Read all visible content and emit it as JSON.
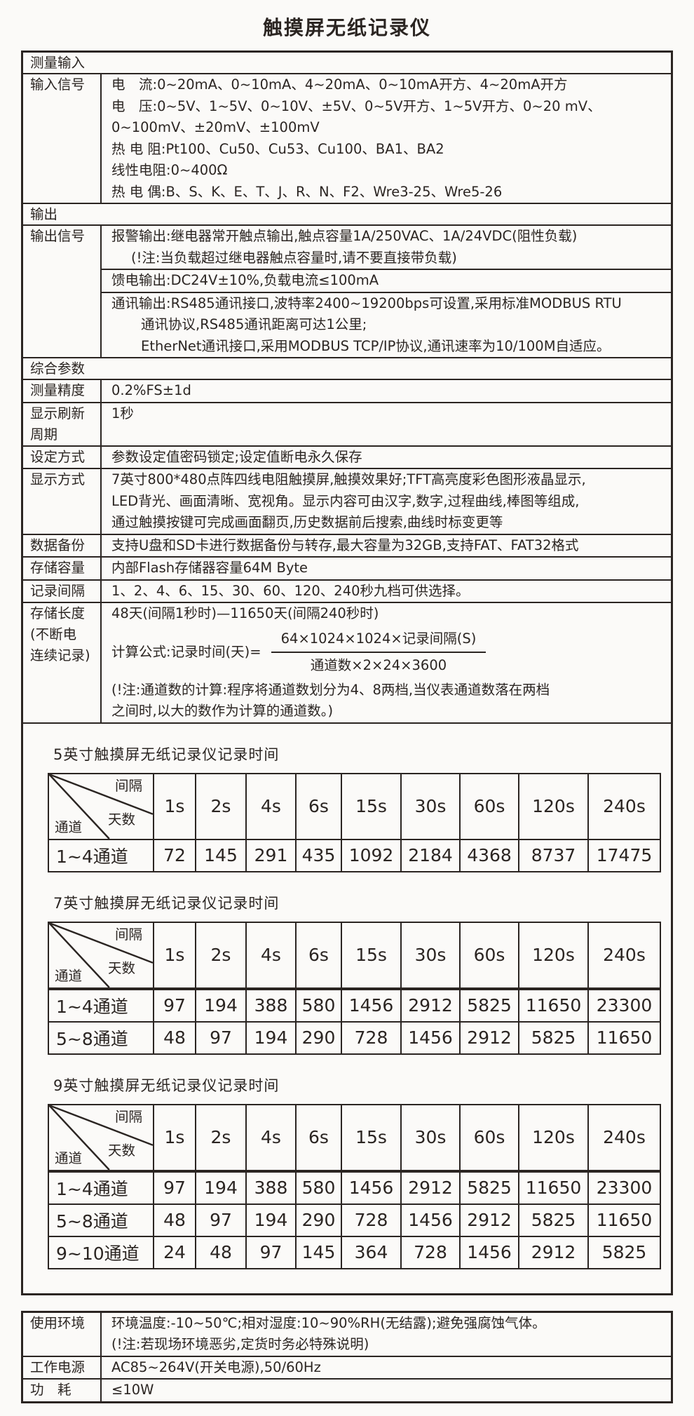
{
  "title": "触摸屏无纸记录仪",
  "colors": {
    "ink": "#2b2522",
    "background": "#fbfaf8"
  },
  "spec_rows": [
    {
      "kind": "section",
      "label": "测量输入"
    },
    {
      "kind": "item",
      "label_lines": [
        "输入信号"
      ],
      "sub": [
        {
          "lines": [
            {
              "t": "电　流:0~20mA、0~10mA、4~20mA、0~10mA开方、4~20mA开方"
            },
            {
              "t": "电　压:0~5V、1~5V、0~10V、±5V、0~5V开方、1~5V开方、0~20 mV、"
            },
            {
              "t": "0~100mV、±20mV、±100mV"
            },
            {
              "t": "热 电 阻:Pt100、Cu50、Cu53、Cu100、BA1、BA2"
            },
            {
              "t": "线性电阻:0~400Ω"
            },
            {
              "t": "热 电 偶:B、S、K、E、T、J、R、N、F2、Wre3-25、Wre5-26"
            }
          ]
        }
      ]
    },
    {
      "kind": "section",
      "label": "输出"
    },
    {
      "kind": "item",
      "label_lines": [
        "输出信号"
      ],
      "sub": [
        {
          "lines": [
            {
              "t": "报警输出:继电器常开触点输出,触点容量1A/250VAC、1A/24VDC(阻性负载)"
            },
            {
              "t": "(!注:当负载超过继电器触点容量时,请不要直接带负载)",
              "ind": 1
            }
          ]
        },
        {
          "lines": [
            {
              "t": "馈电输出:DC24V±10%,负载电流≤100mA"
            }
          ]
        },
        {
          "lines": [
            {
              "t": "通讯输出:RS485通讯接口,波特率2400~19200bps可设置,采用标准MODBUS RTU"
            },
            {
              "t": "通讯协议,RS485通讯距离可达1公里;",
              "ind": 2
            },
            {
              "t": "EtherNet通讯接口,采用MODBUS TCP/IP协议,通讯速率为10/100M自适应。",
              "ind": 2
            }
          ]
        }
      ]
    },
    {
      "kind": "section",
      "label": "综合参数"
    },
    {
      "kind": "item",
      "label_lines": [
        "测量精度"
      ],
      "sub": [
        {
          "lines": [
            {
              "t": "0.2%FS±1d"
            }
          ]
        }
      ]
    },
    {
      "kind": "item",
      "label_lines": [
        "显示刷新",
        "周期"
      ],
      "sub": [
        {
          "lines": [
            {
              "t": "1秒"
            }
          ]
        }
      ]
    },
    {
      "kind": "item",
      "label_lines": [
        "设定方式"
      ],
      "sub": [
        {
          "lines": [
            {
              "t": "参数设定值密码锁定;设定值断电永久保存"
            }
          ]
        }
      ]
    },
    {
      "kind": "item",
      "label_lines": [
        "显示方式"
      ],
      "sub": [
        {
          "lines": [
            {
              "t": "7英寸800*480点阵四线电阻触摸屏,触摸效果好;TFT高亮度彩色图形液晶显示,"
            },
            {
              "t": "LED背光、画面清晰、宽视角。显示内容可由汉字,数字,过程曲线,棒图等组成,"
            },
            {
              "t": "通过触摸按键可完成画面翻页,历史数据前后搜索,曲线时标变更等"
            }
          ]
        }
      ]
    },
    {
      "kind": "item",
      "label_lines": [
        "数据备份"
      ],
      "sub": [
        {
          "lines": [
            {
              "t": "支持U盘和SD卡进行数据备份与转存,最大容量为32GB,支持FAT、FAT32格式"
            }
          ]
        }
      ]
    },
    {
      "kind": "item",
      "label_lines": [
        "存储容量"
      ],
      "sub": [
        {
          "lines": [
            {
              "t": "内部Flash存储器容量64M Byte"
            }
          ]
        }
      ]
    },
    {
      "kind": "item",
      "label_lines": [
        "记录间隔"
      ],
      "sub": [
        {
          "lines": [
            {
              "t": "1、2、4、6、15、30、60、120、240秒九档可供选择。"
            }
          ]
        }
      ]
    },
    {
      "kind": "item",
      "label_lines": [
        "存储长度",
        "(不断电",
        "连续记录)"
      ],
      "sub": [
        {
          "lines": [
            {
              "t": "48天(间隔1秒时)—11650天(间隔240秒时)"
            }
          ],
          "formula": {
            "prefix": "计算公式:记录时间(天)=",
            "num": "64×1024×1024×记录间隔(S)",
            "den": "通道数×2×24×3600"
          },
          "lines2": [
            {
              "t": "(!注:通道数的计算:程序将通道数划分为4、8两档,当仪表通道数落在两档"
            },
            {
              "t": "之间时,以大的数作为计算的通道数。)"
            }
          ]
        }
      ]
    }
  ],
  "record_tables": [
    {
      "title": "5英寸触摸屏无纸记录仪记录时间",
      "corner": {
        "interval": "间隔",
        "days": "天数",
        "channel": "通道"
      },
      "intervals": [
        "1s",
        "2s",
        "4s",
        "6s",
        "15s",
        "30s",
        "60s",
        "120s",
        "240s"
      ],
      "rows": [
        {
          "label": "1~4通道",
          "values": [
            72,
            145,
            291,
            435,
            1092,
            2184,
            4368,
            8737,
            17475
          ]
        }
      ]
    },
    {
      "title": "7英寸触摸屏无纸记录仪记录时间",
      "corner": {
        "interval": "间隔",
        "days": "天数",
        "channel": "通道"
      },
      "intervals": [
        "1s",
        "2s",
        "4s",
        "6s",
        "15s",
        "30s",
        "60s",
        "120s",
        "240s"
      ],
      "rows": [
        {
          "label": "1~4通道",
          "values": [
            97,
            194,
            388,
            580,
            1456,
            2912,
            5825,
            11650,
            23300
          ]
        },
        {
          "label": "5~8通道",
          "values": [
            48,
            97,
            194,
            290,
            728,
            1456,
            2912,
            5825,
            11650
          ]
        }
      ]
    },
    {
      "title": "9英寸触摸屏无纸记录仪记录时间",
      "corner": {
        "interval": "间隔",
        "days": "天数",
        "channel": "通道"
      },
      "intervals": [
        "1s",
        "2s",
        "4s",
        "6s",
        "15s",
        "30s",
        "60s",
        "120s",
        "240s"
      ],
      "rows": [
        {
          "label": "1~4通道",
          "values": [
            97,
            194,
            388,
            580,
            1456,
            2912,
            5825,
            11650,
            23300
          ]
        },
        {
          "label": "5~8通道",
          "values": [
            48,
            97,
            194,
            290,
            728,
            1456,
            2912,
            5825,
            11650
          ]
        },
        {
          "label": "9~10通道",
          "values": [
            24,
            48,
            97,
            145,
            364,
            728,
            1456,
            2912,
            5825
          ]
        }
      ]
    }
  ],
  "env_rows": [
    {
      "label_lines": [
        "使用环境"
      ],
      "lines": [
        {
          "t": "环境温度:-10~50℃;相对湿度:10~90%RH(无结露);避免强腐蚀气体。"
        },
        {
          "t": "(!注:若现场环境恶劣,定货时务必特殊说明)"
        }
      ]
    },
    {
      "label_lines": [
        "工作电源"
      ],
      "lines": [
        {
          "t": "AC85~264V(开关电源),50/60Hz"
        }
      ]
    },
    {
      "label_lines": [
        "功　耗"
      ],
      "lines": [
        {
          "t": "≤10W"
        }
      ]
    }
  ]
}
